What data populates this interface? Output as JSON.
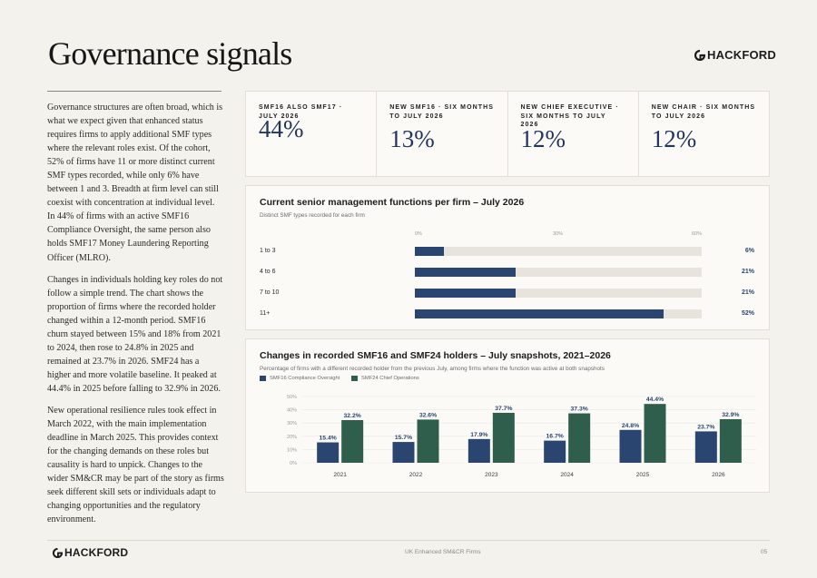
{
  "page": {
    "title": "Governance signals",
    "brand": "HACKFORD",
    "footer_center": "UK Enhanced SM&CR Firms",
    "page_number": "05"
  },
  "body_paragraphs": [
    "Governance structures are often broad, which is what we expect given that enhanced status requires firms to apply additional SMF types where the relevant roles exist. Of the cohort, 52% of firms have 11 or more distinct current SMF types recorded, while only 6% have between 1 and 3. Breadth at firm level can still coexist with concentration at individual level. In 44% of firms with an active SMF16 Compliance Oversight, the same person also holds SMF17 Money Laundering Reporting Officer (MLRO).",
    "Changes in individuals holding key roles do not follow a simple trend. The chart shows the proportion of firms where the recorded holder changed within a 12-month period. SMF16 churn stayed between 15% and 18% from 2021 to 2024, then rose to 24.8% in 2025 and remained at 23.7% in 2026. SMF24 has a higher and more volatile baseline. It peaked at 44.4% in 2025 before falling to 32.9% in 2026.",
    "New operational resilience rules took effect in March 2022, with the main implementation deadline in March 2025. This provides context for the changing demands on these roles but causality is hard to unpick. Changes to the wider SM&CR may be part of the story as firms seek different skill sets or individuals adapt to changing opportunities and the regulatory environment."
  ],
  "stats": [
    {
      "label": "SMF16 ALSO SMF17 · JULY 2026",
      "value": "44%"
    },
    {
      "label": "NEW SMF16 · SIX MONTHS TO JULY 2026",
      "value": "13%"
    },
    {
      "label": "NEW CHIEF EXECUTIVE · SIX MONTHS TO JULY 2026",
      "value": "12%"
    },
    {
      "label": "NEW CHAIR · SIX MONTHS TO JULY 2026",
      "value": "12%"
    }
  ],
  "colors": {
    "smf16": "#2a4670",
    "smf24": "#2f5e4c",
    "track": "#e6e4dc"
  },
  "chart_data": [
    {
      "type": "bar",
      "orientation": "horizontal",
      "title": "Current senior management functions per firm – July 2026",
      "subtitle": "Distinct SMF types recorded for each firm",
      "categories": [
        "1 to 3",
        "4 to 6",
        "7 to 10",
        "11+"
      ],
      "values": [
        6,
        21,
        21,
        52
      ],
      "value_labels": [
        "6%",
        "21%",
        "21%",
        "52%"
      ],
      "xlim": [
        0,
        60
      ],
      "xticks": [
        "0%",
        "30%",
        "60%"
      ]
    },
    {
      "type": "bar",
      "title": "Changes in recorded SMF16 and SMF24 holders – July snapshots, 2021–2026",
      "subtitle": "Percentage of firms with a different recorded holder from the previous July, among firms where the function was active at both snapshots",
      "categories": [
        "2021",
        "2022",
        "2023",
        "2024",
        "2025",
        "2026"
      ],
      "series": [
        {
          "name": "SMF16 Compliance Oversight",
          "values": [
            15.4,
            15.7,
            17.9,
            16.7,
            24.8,
            23.7
          ],
          "labels": [
            "15.4%",
            "15.7%",
            "17.9%",
            "16.7%",
            "24.8%",
            "23.7%"
          ]
        },
        {
          "name": "SMF24 Chief Operations",
          "values": [
            32.2,
            32.6,
            37.7,
            37.3,
            44.4,
            32.9
          ],
          "labels": [
            "32.2%",
            "32.6%",
            "37.7%",
            "37.3%",
            "44.4%",
            "32.9%"
          ]
        }
      ],
      "ylim": [
        0,
        50
      ],
      "yticks": [
        "0%",
        "10%",
        "20%",
        "30%",
        "40%",
        "50%"
      ],
      "grid": true,
      "legend": "top-left"
    }
  ]
}
